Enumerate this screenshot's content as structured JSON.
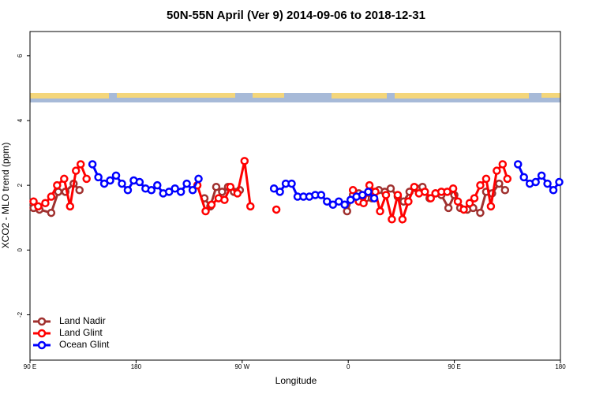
{
  "chart_data": {
    "type": "line",
    "title": "50N-55N April (Ver 9)   2014-09-06 to 2018-12-31",
    "x_label": "Longitude",
    "y_label": "XCO2 - MLO trend (ppm)",
    "xlim": [
      90,
      540
    ],
    "xticks": [
      {
        "value": 90,
        "label": "90 E"
      },
      180,
      {
        "value": 270,
        "label": "90 W"
      },
      {
        "value": 360,
        "label": "0"
      },
      {
        "value": 450,
        "label": "90 E"
      },
      {
        "value": 540,
        "label": "180"
      }
    ],
    "ylim": [
      -3.4,
      6.75
    ],
    "yticks": [
      -2,
      0,
      2,
      4,
      6
    ],
    "legend": "bottom-left",
    "series": [
      {
        "name": "Land Nadir",
        "color": "#a0312f",
        "x": [
          93,
          98,
          108,
          114,
          120,
          127,
          132,
          185,
          238,
          243,
          248,
          253,
          258,
          263,
          268,
          320,
          359,
          364,
          369,
          375,
          380,
          386,
          391,
          396,
          402,
          407,
          412,
          418,
          423,
          429,
          434,
          439,
          445,
          450,
          455,
          461,
          466,
          472,
          477,
          482,
          488,
          493
        ],
        "values": [
          1.3,
          1.25,
          1.15,
          1.8,
          1.8,
          2.05,
          1.85,
          null,
          1.6,
          1.35,
          1.95,
          1.8,
          1.95,
          1.8,
          1.85,
          null,
          1.2,
          1.7,
          1.75,
          1.6,
          1.6,
          1.85,
          1.8,
          1.9,
          1.65,
          1.5,
          1.8,
          1.9,
          1.95,
          1.6,
          1.75,
          1.7,
          1.3,
          1.7,
          1.3,
          1.25,
          1.3,
          1.15,
          1.8,
          1.75,
          2.05,
          1.85
        ]
      },
      {
        "name": "Land Glint",
        "color": "#ff0000",
        "x": [
          93,
          97,
          103,
          108,
          113,
          119,
          124,
          129,
          133,
          138,
          185,
          232,
          239,
          244,
          250,
          255,
          260,
          266,
          272,
          277,
          288,
          299,
          330,
          364,
          369,
          373,
          378,
          383,
          387,
          392,
          397,
          402,
          406,
          411,
          416,
          420,
          425,
          430,
          434,
          439,
          444,
          449,
          453,
          458,
          463,
          467,
          472,
          477,
          481,
          486,
          491,
          495
        ],
        "values": [
          1.5,
          1.35,
          1.45,
          1.65,
          2.0,
          2.2,
          1.35,
          2.45,
          2.65,
          2.2,
          null,
          2.0,
          1.2,
          1.4,
          1.6,
          1.55,
          1.95,
          1.75,
          2.75,
          1.35,
          null,
          1.25,
          null,
          1.85,
          1.5,
          1.45,
          2.0,
          1.8,
          1.2,
          1.7,
          0.95,
          1.7,
          0.95,
          1.5,
          1.95,
          1.75,
          1.8,
          1.6,
          1.75,
          1.8,
          1.8,
          1.9,
          1.5,
          1.25,
          1.45,
          1.6,
          2.0,
          2.2,
          1.35,
          2.45,
          2.65,
          2.2
        ]
      },
      {
        "name": "Ocean Glint",
        "color": "#0000ff",
        "x": [
          143,
          148,
          153,
          158,
          163,
          168,
          173,
          178,
          183,
          188,
          193,
          198,
          203,
          208,
          213,
          218,
          223,
          228,
          233,
          265,
          297,
          302,
          307,
          312,
          317,
          322,
          327,
          332,
          337,
          342,
          347,
          352,
          357,
          362,
          367,
          372,
          377,
          382,
          440,
          504,
          509,
          514,
          519,
          524,
          529,
          534,
          539
        ],
        "values": [
          2.65,
          2.25,
          2.05,
          2.15,
          2.3,
          2.05,
          1.85,
          2.15,
          2.1,
          1.9,
          1.85,
          2.0,
          1.75,
          1.8,
          1.9,
          1.8,
          2.05,
          1.85,
          2.2,
          null,
          1.9,
          1.8,
          2.05,
          2.05,
          1.65,
          1.65,
          1.65,
          1.7,
          1.7,
          1.5,
          1.4,
          1.5,
          1.4,
          1.55,
          1.65,
          1.7,
          1.8,
          1.6,
          null,
          2.65,
          2.25,
          2.05,
          2.1,
          2.3,
          2.05,
          1.85,
          2.1
        ]
      }
    ]
  }
}
